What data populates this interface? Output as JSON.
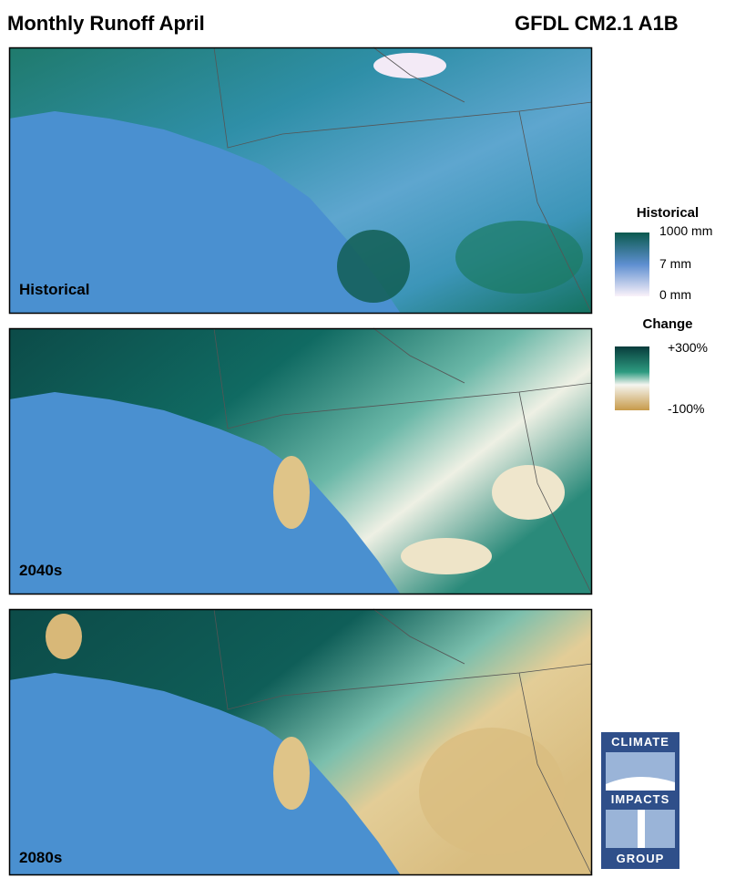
{
  "header": {
    "title": "Monthly Runoff April",
    "model": "GFDL CM2.1 A1B"
  },
  "panels": [
    {
      "label": "Historical"
    },
    {
      "label": "2040s"
    },
    {
      "label": "2080s"
    }
  ],
  "legend": {
    "historical": {
      "title": "Historical",
      "labels": [
        "1000 mm",
        "7 mm",
        "0 mm"
      ]
    },
    "change": {
      "title": "Change",
      "labels": [
        "+300%",
        "-100%"
      ]
    }
  },
  "logo": {
    "lines": [
      "CLIMATE",
      "IMPACTS",
      "GROUP"
    ]
  }
}
